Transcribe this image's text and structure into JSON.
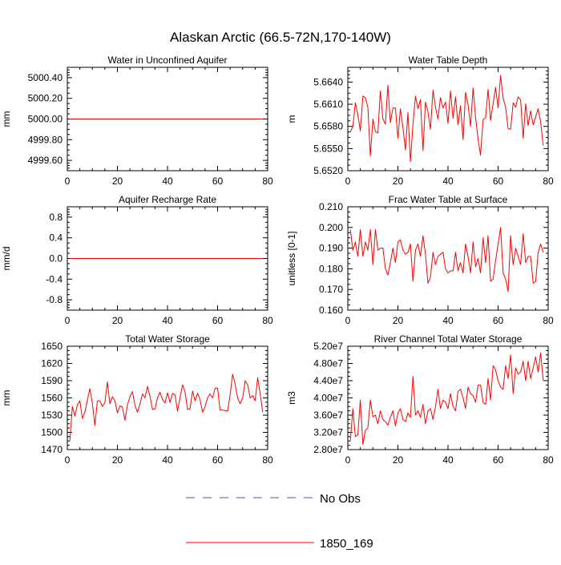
{
  "figure": {
    "title": "Alaskan Arctic (66.5-72N,170-140W)"
  },
  "legend": {
    "items": [
      {
        "label": "No Obs",
        "color": "#5050b4",
        "style": "dashed"
      },
      {
        "label": "1850_169",
        "color": "#ff0000",
        "style": "solid"
      }
    ]
  },
  "chart_data": [
    {
      "type": "line",
      "title": "Water in Unconfined Aquifer",
      "ylabel": "mm",
      "xlim": [
        0,
        80
      ],
      "ylim": [
        4999.5,
        5000.5
      ],
      "xticks": [
        0,
        20,
        40,
        60,
        80
      ],
      "xtick_labels": [
        "0",
        "20",
        "40",
        "60",
        "80"
      ],
      "yticks": [
        4999.6,
        4999.8,
        5000.0,
        5000.2,
        5000.4
      ],
      "ytick_labels": [
        "4999.60",
        "4999.80",
        "5000.00",
        "5000.20",
        "5000.40"
      ],
      "grid": false,
      "series": [
        {
          "name": "1850_169",
          "color": "#ff0000",
          "x": [
            1,
            78
          ],
          "y": [
            5000.0,
            5000.0
          ]
        }
      ]
    },
    {
      "type": "line",
      "title": "Water Table Depth",
      "ylabel": "m",
      "xlim": [
        0,
        80
      ],
      "ylim": [
        5.652,
        5.666
      ],
      "xticks": [
        0,
        20,
        40,
        60,
        80
      ],
      "xtick_labels": [
        "0",
        "20",
        "40",
        "60",
        "80"
      ],
      "yticks": [
        5.652,
        5.655,
        5.658,
        5.661,
        5.664
      ],
      "ytick_labels": [
        "5.6520",
        "5.6550",
        "5.6580",
        "5.6610",
        "5.6640"
      ],
      "grid": false,
      "series": [
        {
          "name": "1850_169",
          "color": "#ff0000",
          "x": [
            1,
            2,
            3,
            4,
            5,
            6,
            7,
            8,
            9,
            10,
            11,
            12,
            13,
            14,
            15,
            16,
            17,
            18,
            19,
            20,
            21,
            22,
            23,
            24,
            25,
            26,
            27,
            28,
            29,
            30,
            31,
            32,
            33,
            34,
            35,
            36,
            37,
            38,
            39,
            40,
            41,
            42,
            43,
            44,
            45,
            46,
            47,
            48,
            49,
            50,
            51,
            52,
            53,
            54,
            55,
            56,
            57,
            58,
            59,
            60,
            61,
            62,
            63,
            64,
            65,
            66,
            67,
            68,
            69,
            70,
            71,
            72,
            73,
            74,
            75,
            76,
            77,
            78
          ],
          "y": [
            5.6572,
            5.658,
            5.6612,
            5.6596,
            5.6574,
            5.6621,
            5.6619,
            5.6606,
            5.654,
            5.659,
            5.6573,
            5.6571,
            5.6628,
            5.659,
            5.6583,
            5.6636,
            5.6585,
            5.6605,
            5.6605,
            5.6564,
            5.6604,
            5.6578,
            5.6548,
            5.6599,
            5.6532,
            5.6583,
            5.6621,
            5.6604,
            5.6616,
            5.6547,
            5.6613,
            5.66,
            5.6576,
            5.6629,
            5.6606,
            5.659,
            5.6619,
            5.6605,
            5.6613,
            5.6584,
            5.6628,
            5.6591,
            5.662,
            5.6582,
            5.6608,
            5.6562,
            5.6626,
            5.661,
            5.658,
            5.6632,
            5.6592,
            5.6563,
            5.6541,
            5.6589,
            5.6592,
            5.663,
            5.6588,
            5.6611,
            5.6633,
            5.6605,
            5.6649,
            5.6618,
            5.6606,
            5.6577,
            5.6576,
            5.6612,
            5.6606,
            5.662,
            5.6616,
            5.6564,
            5.6611,
            5.6581,
            5.6601,
            5.6582,
            5.6593,
            5.6604,
            5.6586,
            5.6554
          ]
        }
      ]
    },
    {
      "type": "line",
      "title": "Aquifer Recharge Rate",
      "ylabel": "mm/d",
      "xlim": [
        0,
        80
      ],
      "ylim": [
        -1.0,
        1.0
      ],
      "xticks": [
        0,
        20,
        40,
        60,
        80
      ],
      "xtick_labels": [
        "0",
        "20",
        "40",
        "60",
        "80"
      ],
      "yticks": [
        -0.8,
        -0.4,
        0.0,
        0.4,
        0.8
      ],
      "ytick_labels": [
        "-0.8",
        "-0.4",
        "0.0",
        "0.4",
        "0.8"
      ],
      "grid": false,
      "series": [
        {
          "name": "1850_169",
          "color": "#ff0000",
          "x": [
            1,
            78
          ],
          "y": [
            0.0,
            0.0
          ]
        }
      ]
    },
    {
      "type": "line",
      "title": "Frac Water Table at Surface",
      "ylabel": "unitless [0-1]",
      "xlim": [
        0,
        80
      ],
      "ylim": [
        0.16,
        0.21
      ],
      "xticks": [
        0,
        20,
        40,
        60,
        80
      ],
      "xtick_labels": [
        "0",
        "20",
        "40",
        "60",
        "80"
      ],
      "yticks": [
        0.16,
        0.17,
        0.18,
        0.19,
        0.2,
        0.21
      ],
      "ytick_labels": [
        "0.160",
        "0.170",
        "0.180",
        "0.190",
        "0.200",
        "0.210"
      ],
      "grid": false,
      "series": [
        {
          "name": "1850_169",
          "color": "#ff0000",
          "x": [
            1,
            2,
            3,
            4,
            5,
            6,
            7,
            8,
            9,
            10,
            11,
            12,
            13,
            14,
            15,
            16,
            17,
            18,
            19,
            20,
            21,
            22,
            23,
            24,
            25,
            26,
            27,
            28,
            29,
            30,
            31,
            32,
            33,
            34,
            35,
            36,
            37,
            38,
            39,
            40,
            41,
            42,
            43,
            44,
            45,
            46,
            47,
            48,
            49,
            50,
            51,
            52,
            53,
            54,
            55,
            56,
            57,
            58,
            59,
            60,
            61,
            62,
            63,
            64,
            65,
            66,
            67,
            68,
            69,
            70,
            71,
            72,
            73,
            74,
            75,
            76,
            77,
            78
          ],
          "y": [
            0.199,
            0.189,
            0.193,
            0.186,
            0.199,
            0.186,
            0.193,
            0.189,
            0.199,
            0.182,
            0.199,
            0.189,
            0.19,
            0.19,
            0.18,
            0.177,
            0.183,
            0.19,
            0.183,
            0.193,
            0.194,
            0.189,
            0.187,
            0.188,
            0.192,
            0.174,
            0.189,
            0.192,
            0.186,
            0.196,
            0.187,
            0.173,
            0.176,
            0.188,
            0.182,
            0.186,
            0.187,
            0.188,
            0.18,
            0.178,
            0.179,
            0.179,
            0.188,
            0.179,
            0.183,
            0.178,
            0.192,
            0.186,
            0.178,
            0.193,
            0.181,
            0.185,
            0.178,
            0.195,
            0.183,
            0.196,
            0.174,
            0.175,
            0.184,
            0.192,
            0.2,
            0.178,
            0.175,
            0.169,
            0.196,
            0.182,
            0.19,
            0.186,
            0.182,
            0.197,
            0.183,
            0.186,
            0.186,
            0.173,
            0.174,
            0.188,
            0.192,
            0.188
          ]
        }
      ]
    },
    {
      "type": "line",
      "title": "Total Water Storage",
      "ylabel": "mm",
      "xlim": [
        0,
        80
      ],
      "ylim": [
        1470,
        1650
      ],
      "xticks": [
        0,
        20,
        40,
        60,
        80
      ],
      "xtick_labels": [
        "0",
        "20",
        "40",
        "60",
        "80"
      ],
      "yticks": [
        1470,
        1500,
        1530,
        1560,
        1590,
        1620,
        1650
      ],
      "ytick_labels": [
        "1470",
        "1500",
        "1530",
        "1560",
        "1590",
        "1620",
        "1650"
      ],
      "grid": false,
      "series": [
        {
          "name": "1850_169",
          "color": "#ff0000",
          "x": [
            1,
            2,
            3,
            4,
            5,
            6,
            7,
            8,
            9,
            10,
            11,
            12,
            13,
            14,
            15,
            16,
            17,
            18,
            19,
            20,
            21,
            22,
            23,
            24,
            25,
            26,
            27,
            28,
            29,
            30,
            31,
            32,
            33,
            34,
            35,
            36,
            37,
            38,
            39,
            40,
            41,
            42,
            43,
            44,
            45,
            46,
            47,
            48,
            49,
            50,
            51,
            52,
            53,
            54,
            55,
            56,
            57,
            58,
            59,
            60,
            61,
            62,
            63,
            64,
            65,
            66,
            67,
            68,
            69,
            70,
            71,
            72,
            73,
            74,
            75,
            76,
            77,
            78
          ],
          "y": [
            1485,
            1545,
            1528,
            1548,
            1555,
            1524,
            1535,
            1556,
            1576,
            1550,
            1512,
            1555,
            1555,
            1545,
            1552,
            1588,
            1550,
            1562,
            1555,
            1534,
            1546,
            1544,
            1521,
            1548,
            1562,
            1571,
            1547,
            1535,
            1549,
            1567,
            1560,
            1580,
            1563,
            1540,
            1541,
            1560,
            1570,
            1557,
            1551,
            1569,
            1552,
            1568,
            1565,
            1537,
            1560,
            1583,
            1570,
            1540,
            1541,
            1572,
            1555,
            1568,
            1557,
            1535,
            1545,
            1560,
            1567,
            1560,
            1577,
            1577,
            1539,
            1539,
            1538,
            1537,
            1565,
            1601,
            1584,
            1560,
            1550,
            1560,
            1590,
            1583,
            1560,
            1564,
            1555,
            1595,
            1568,
            1535
          ]
        }
      ]
    },
    {
      "type": "line",
      "title": "River Channel Total Water Storage",
      "ylabel": "m3",
      "xlim": [
        0,
        80
      ],
      "ylim": [
        28000000,
        52000000
      ],
      "xticks": [
        0,
        20,
        40,
        60,
        80
      ],
      "xtick_labels": [
        "0",
        "20",
        "40",
        "60",
        "80"
      ],
      "yticks": [
        28000000,
        32000000,
        36000000,
        40000000,
        44000000,
        48000000,
        52000000
      ],
      "ytick_labels": [
        "2.80e7",
        "3.20e7",
        "3.60e7",
        "4.00e7",
        "4.40e7",
        "4.80e7",
        "5.20e7"
      ],
      "grid": false,
      "series": [
        {
          "name": "1850_169",
          "color": "#ff0000",
          "x": [
            1,
            2,
            3,
            4,
            5,
            6,
            7,
            8,
            9,
            10,
            11,
            12,
            13,
            14,
            15,
            16,
            17,
            18,
            19,
            20,
            21,
            22,
            23,
            24,
            25,
            26,
            27,
            28,
            29,
            30,
            31,
            32,
            33,
            34,
            35,
            36,
            37,
            38,
            39,
            40,
            41,
            42,
            43,
            44,
            45,
            46,
            47,
            48,
            49,
            50,
            51,
            52,
            53,
            54,
            55,
            56,
            57,
            58,
            59,
            60,
            61,
            62,
            63,
            64,
            65,
            66,
            67,
            68,
            69,
            70,
            71,
            72,
            73,
            74,
            75,
            76,
            77,
            78
          ],
          "y": [
            30000000,
            37500000,
            31000000,
            31500000,
            39500000,
            29200000,
            32500000,
            33000000,
            39500000,
            35600000,
            36000000,
            34000000,
            37000000,
            35000000,
            34500000,
            33700000,
            35500000,
            37000000,
            33500000,
            36500000,
            37500000,
            35000000,
            34500000,
            36500000,
            35500000,
            45000000,
            36000000,
            37000000,
            35500000,
            38500000,
            34000000,
            37000000,
            37500000,
            35000000,
            38000000,
            42000000,
            37500000,
            39500000,
            39000000,
            37500000,
            41000000,
            38000000,
            37000000,
            41500000,
            42000000,
            40000000,
            37500000,
            42500000,
            41000000,
            40500000,
            39000000,
            43000000,
            43000000,
            39000000,
            38500000,
            44500000,
            39500000,
            47500000,
            46500000,
            44000000,
            42500000,
            42000000,
            47500000,
            44500000,
            50000000,
            41000000,
            47000000,
            45500000,
            46000000,
            48500000,
            44000000,
            48500000,
            44500000,
            47000000,
            49500000,
            46000000,
            50500000,
            44000000
          ]
        }
      ]
    }
  ]
}
